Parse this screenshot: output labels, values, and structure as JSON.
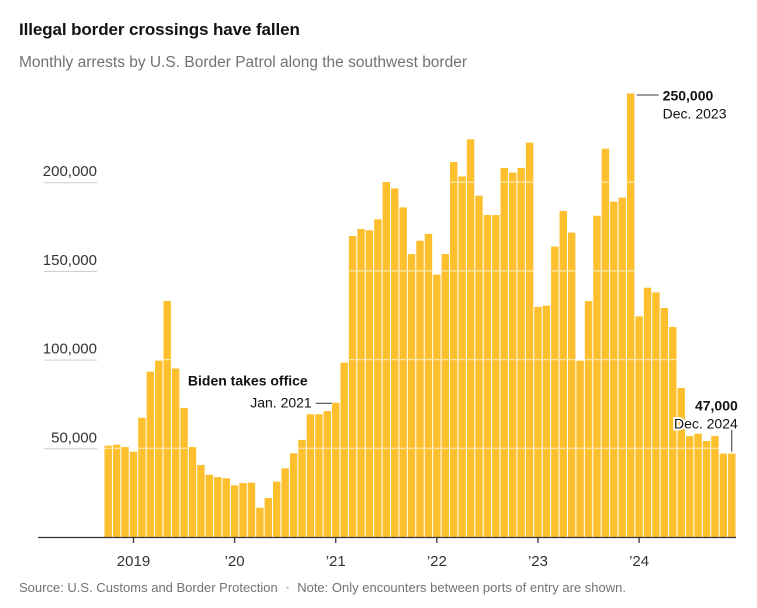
{
  "header": {
    "title": "Illegal border crossings have fallen",
    "subtitle": "Monthly arrests by U.S. Border Patrol along the southwest border"
  },
  "footer": {
    "source": "Source: U.S. Customs and Border Protection",
    "separator": "•",
    "note": "Note: Only encounters between ports of entry are shown."
  },
  "colors": {
    "bar": "#fdbf2d",
    "gridline_on_bar": "#fde7a8",
    "axis": "#333333",
    "label_gridline": "#cccccc"
  },
  "chart_data": {
    "type": "bar",
    "title": "Illegal border crossings have fallen",
    "subtitle": "Monthly arrests by U.S. Border Patrol along the southwest border",
    "xlabel": "",
    "ylabel": "",
    "ylim": [
      0,
      250000
    ],
    "yticks": [
      50000,
      100000,
      150000,
      200000
    ],
    "ytick_labels": [
      "50,000",
      "100,000",
      "150,000",
      "200,000"
    ],
    "xticks": [
      {
        "category": "2019-01",
        "label": "2019"
      },
      {
        "category": "2020-01",
        "label": "’20"
      },
      {
        "category": "2021-01",
        "label": "’21"
      },
      {
        "category": "2022-01",
        "label": "’22"
      },
      {
        "category": "2023-01",
        "label": "’23"
      },
      {
        "category": "2024-01",
        "label": "’24"
      }
    ],
    "grid": "horizontal lines shown only through bars",
    "legend": "none",
    "categories": [
      "2018-10",
      "2018-11",
      "2018-12",
      "2019-01",
      "2019-02",
      "2019-03",
      "2019-04",
      "2019-05",
      "2019-06",
      "2019-07",
      "2019-08",
      "2019-09",
      "2019-10",
      "2019-11",
      "2019-12",
      "2020-01",
      "2020-02",
      "2020-03",
      "2020-04",
      "2020-05",
      "2020-06",
      "2020-07",
      "2020-08",
      "2020-09",
      "2020-10",
      "2020-11",
      "2020-12",
      "2021-01",
      "2021-02",
      "2021-03",
      "2021-04",
      "2021-05",
      "2021-06",
      "2021-07",
      "2021-08",
      "2021-09",
      "2021-10",
      "2021-11",
      "2021-12",
      "2022-01",
      "2022-02",
      "2022-03",
      "2022-04",
      "2022-05",
      "2022-06",
      "2022-07",
      "2022-08",
      "2022-09",
      "2022-10",
      "2022-11",
      "2022-12",
      "2023-01",
      "2023-02",
      "2023-03",
      "2023-04",
      "2023-05",
      "2023-06",
      "2023-07",
      "2023-08",
      "2023-09",
      "2023-10",
      "2023-11",
      "2023-12",
      "2024-01",
      "2024-02",
      "2024-03",
      "2024-04",
      "2024-05",
      "2024-06",
      "2024-07",
      "2024-08",
      "2024-09",
      "2024-10",
      "2024-11",
      "2024-12"
    ],
    "values": [
      51500,
      52000,
      50700,
      48100,
      67200,
      93200,
      99400,
      133000,
      95000,
      72700,
      50700,
      40600,
      35100,
      33800,
      33100,
      29100,
      30400,
      30600,
      16500,
      22000,
      31200,
      38700,
      47200,
      54700,
      69200,
      69200,
      71000,
      75700,
      98300,
      169700,
      173600,
      172900,
      179100,
      200100,
      196500,
      185800,
      159500,
      167000,
      170900,
      147900,
      159500,
      211400,
      203300,
      224200,
      192400,
      181500,
      181500,
      208000,
      205400,
      208000,
      222300,
      129700,
      130400,
      163700,
      183800,
      171600,
      99400,
      133000,
      181100,
      218900,
      189000,
      191300,
      250000,
      124400,
      140500,
      137900,
      129100,
      118400,
      84000,
      56900,
      58200,
      54100,
      56900,
      47000,
      47000
    ],
    "annotations": [
      {
        "category": "2021-01",
        "title": "Biden takes office",
        "label": "Jan. 2021",
        "side": "left"
      },
      {
        "category": "2023-12",
        "title": "250,000",
        "label": "Dec. 2023",
        "side": "right"
      },
      {
        "category": "2024-12",
        "title": "47,000",
        "label": "Dec. 2024",
        "side": "above"
      }
    ]
  }
}
